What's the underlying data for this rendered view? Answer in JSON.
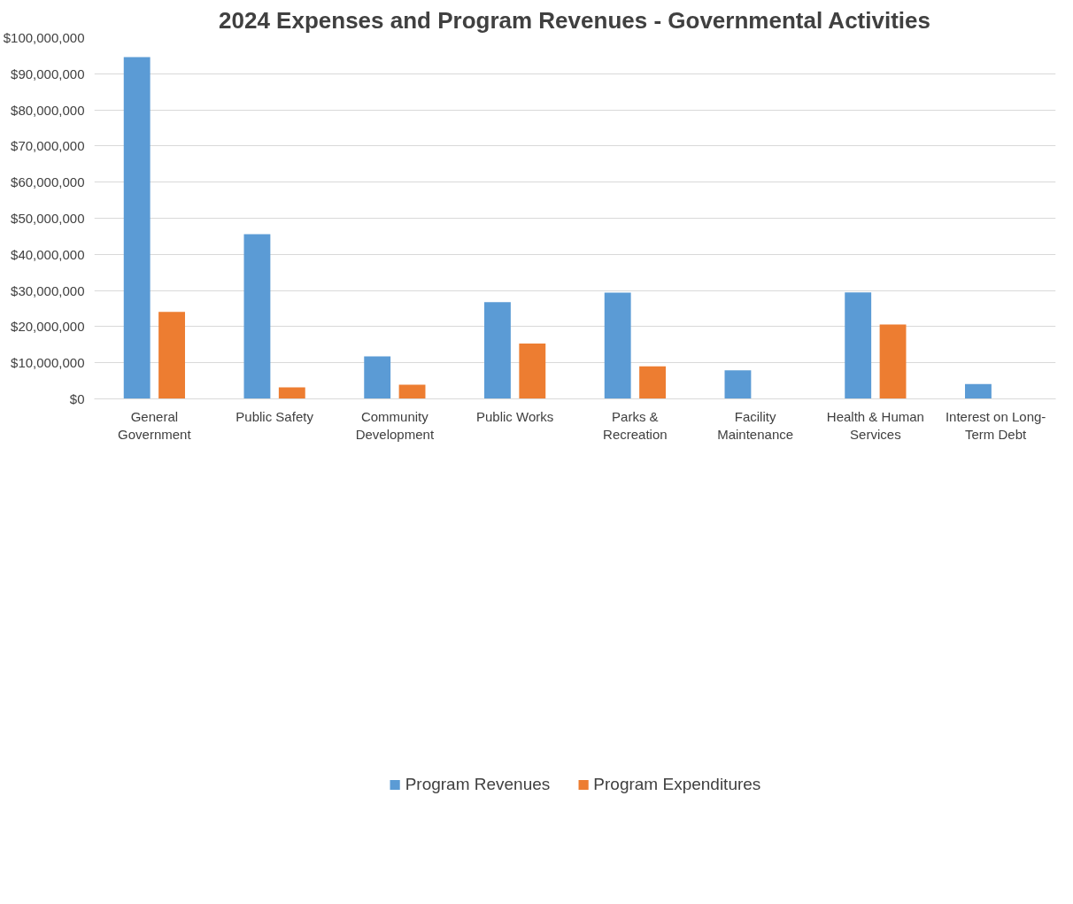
{
  "chart_data": {
    "type": "bar",
    "title": "2024 Expenses and Program Revenues - Governmental Activities",
    "categories": [
      "General Government",
      "Public Safety",
      "Community Development",
      "Public Works",
      "Parks & Recreation",
      "Facility Maintenance",
      "Health & Human Services",
      "Interest on Long-Term Debt"
    ],
    "series": [
      {
        "name": "Program Revenues",
        "color": "#5b9bd5",
        "values": [
          94600000,
          45600000,
          11750000,
          26800000,
          29400000,
          7900000,
          29500000,
          4100000
        ]
      },
      {
        "name": "Program Expenditures",
        "color": "#ed7d31",
        "values": [
          24100000,
          3200000,
          3900000,
          15300000,
          9000000,
          null,
          20600000,
          null
        ]
      }
    ],
    "ylim": [
      0,
      100000000
    ],
    "yticks": [
      {
        "value": 0,
        "label": "$0"
      },
      {
        "value": 10000000,
        "label": "$10,000,000"
      },
      {
        "value": 20000000,
        "label": "$20,000,000"
      },
      {
        "value": 30000000,
        "label": "$30,000,000"
      },
      {
        "value": 40000000,
        "label": "$40,000,000"
      },
      {
        "value": 50000000,
        "label": "$50,000,000"
      },
      {
        "value": 60000000,
        "label": "$60,000,000"
      },
      {
        "value": 70000000,
        "label": "$70,000,000"
      },
      {
        "value": 80000000,
        "label": "$80,000,000"
      },
      {
        "value": 90000000,
        "label": "$90,000,000"
      },
      {
        "value": 100000000,
        "label": "$100,000,000"
      }
    ],
    "grid": "y",
    "legend": "bottom"
  }
}
